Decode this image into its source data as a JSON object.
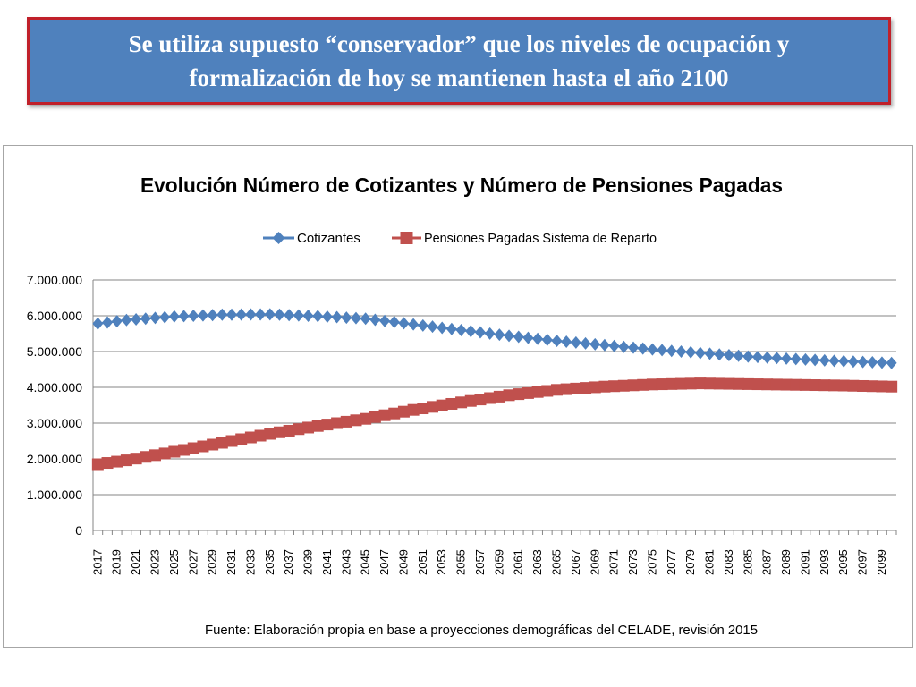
{
  "banner": {
    "line1": "Se utiliza supuesto “conservador” que los niveles de ocupación y",
    "line2": "formalización de hoy se mantienen hasta el año 2100"
  },
  "colors": {
    "banner_bg": "#4f81bd",
    "banner_border": "#c0202a",
    "series_cotizantes": "#4f81bd",
    "series_pensiones": "#c0504d",
    "grid": "#868686"
  },
  "chart_data": {
    "type": "line",
    "title": "Evolución Número de Cotizantes y Número de Pensiones Pagadas",
    "source": "Fuente: Elaboración propia en base a proyecciones demográficas del CELADE, revisión 2015",
    "legend_position": "top",
    "grid": true,
    "ylim": [
      0,
      7000000
    ],
    "yticks": [
      0,
      1000000,
      2000000,
      3000000,
      4000000,
      5000000,
      6000000,
      7000000
    ],
    "ytick_labels": [
      "0",
      "1.000.000",
      "2.000.000",
      "3.000.000",
      "4.000.000",
      "5.000.000",
      "6.000.000",
      "7.000.000"
    ],
    "x_start": 2017,
    "x_end": 2100,
    "xtick_labels": [
      "2017",
      "2019",
      "2021",
      "2023",
      "2025",
      "2027",
      "2029",
      "2031",
      "2033",
      "2035",
      "2037",
      "2039",
      "2041",
      "2043",
      "2045",
      "2047",
      "2049",
      "2051",
      "2053",
      "2055",
      "2057",
      "2059",
      "2061",
      "2063",
      "2065",
      "2067",
      "2069",
      "2071",
      "2073",
      "2075",
      "2077",
      "2079",
      "2081",
      "2083",
      "2085",
      "2087",
      "2089",
      "2091",
      "2093",
      "2095",
      "2097",
      "2099"
    ],
    "series": [
      {
        "name": "Cotizantes",
        "marker": "diamond",
        "anchors": [
          [
            2017,
            5780000
          ],
          [
            2020,
            5880000
          ],
          [
            2025,
            5980000
          ],
          [
            2030,
            6030000
          ],
          [
            2035,
            6040000
          ],
          [
            2040,
            5990000
          ],
          [
            2045,
            5920000
          ],
          [
            2050,
            5760000
          ],
          [
            2055,
            5600000
          ],
          [
            2060,
            5440000
          ],
          [
            2065,
            5300000
          ],
          [
            2070,
            5180000
          ],
          [
            2075,
            5060000
          ],
          [
            2080,
            4960000
          ],
          [
            2085,
            4860000
          ],
          [
            2090,
            4790000
          ],
          [
            2095,
            4730000
          ],
          [
            2100,
            4680000
          ]
        ]
      },
      {
        "name": "Pensiones Pagadas Sistema  de Reparto",
        "marker": "square",
        "anchors": [
          [
            2017,
            1850000
          ],
          [
            2020,
            1960000
          ],
          [
            2025,
            2200000
          ],
          [
            2030,
            2450000
          ],
          [
            2035,
            2700000
          ],
          [
            2040,
            2920000
          ],
          [
            2045,
            3120000
          ],
          [
            2050,
            3370000
          ],
          [
            2055,
            3580000
          ],
          [
            2060,
            3780000
          ],
          [
            2065,
            3930000
          ],
          [
            2070,
            4020000
          ],
          [
            2075,
            4080000
          ],
          [
            2080,
            4110000
          ],
          [
            2085,
            4090000
          ],
          [
            2090,
            4070000
          ],
          [
            2095,
            4050000
          ],
          [
            2100,
            4020000
          ]
        ]
      }
    ]
  }
}
